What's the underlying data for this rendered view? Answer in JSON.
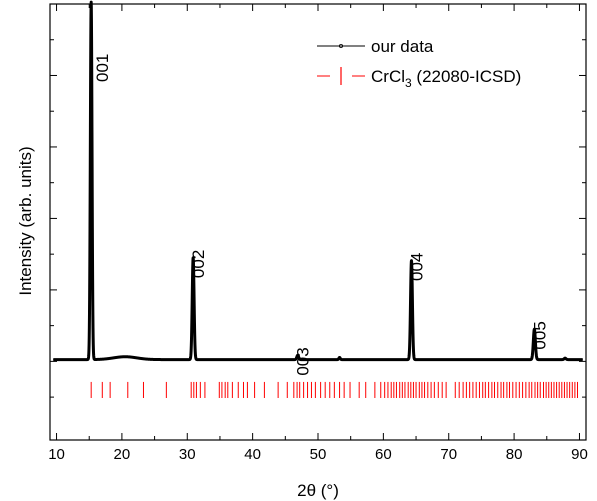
{
  "chart_data": {
    "type": "line",
    "title": "",
    "xlabel": "2θ (°)",
    "ylabel": "Intensity (arb. units)",
    "xlim": [
      9,
      91
    ],
    "ylim": [
      -0.22,
      1.0
    ],
    "x_ticks": [
      10,
      20,
      30,
      40,
      50,
      60,
      70,
      80,
      90
    ],
    "x_tick_labels": [
      "10",
      "20",
      "30",
      "40",
      "50",
      "60",
      "70",
      "80",
      "90"
    ],
    "y_tick_labels_shown": false,
    "grid": false,
    "legend": {
      "placement": "top-right",
      "entries": [
        {
          "series": "our_data",
          "label": "our data"
        },
        {
          "series": "reference",
          "label_main": "CrCl",
          "label_sub": "3",
          "label_rest": " (22080-ICSD)"
        }
      ]
    },
    "colors": {
      "our_data": "#000000",
      "reference": "#ff0000",
      "axis": "#000000"
    },
    "series": [
      {
        "id": "our_data",
        "name": "our data",
        "baseline": 0.005,
        "peaks": [
          {
            "x": 15.3,
            "height": 1.0,
            "width": 0.18,
            "label": "001"
          },
          {
            "x": 30.9,
            "height": 0.285,
            "width": 0.2,
            "label": "002"
          },
          {
            "x": 46.9,
            "height": 0.012,
            "width": 0.2,
            "label": "003"
          },
          {
            "x": 64.3,
            "height": 0.277,
            "width": 0.2,
            "label": "004"
          },
          {
            "x": 83.1,
            "height": 0.085,
            "width": 0.22,
            "label": "005"
          }
        ],
        "humps": [
          {
            "x": 20.5,
            "height": 0.008,
            "width": 2.5
          },
          {
            "x": 53.3,
            "height": 0.006,
            "width": 0.15
          },
          {
            "x": 87.8,
            "height": 0.004,
            "width": 0.2
          }
        ]
      },
      {
        "id": "reference",
        "name": "CrCl3 (22080-ICSD)",
        "type": "ticks",
        "y_level": -0.08,
        "tick_height": 0.045,
        "positions": [
          15.3,
          17.0,
          18.2,
          20.9,
          23.3,
          26.8,
          30.6,
          31.0,
          31.4,
          32.0,
          32.7,
          34.9,
          35.3,
          35.8,
          36.2,
          36.9,
          37.8,
          38.6,
          39.2,
          40.3,
          41.8,
          43.9,
          45.3,
          46.3,
          46.8,
          47.2,
          47.8,
          48.4,
          49.0,
          49.6,
          50.4,
          51.1,
          51.8,
          52.5,
          53.3,
          54.0,
          54.9,
          56.3,
          57.3,
          58.7,
          59.6,
          60.2,
          60.7,
          61.2,
          61.6,
          62.0,
          62.5,
          62.9,
          63.3,
          63.8,
          64.2,
          64.6,
          65.0,
          65.5,
          65.9,
          66.3,
          66.8,
          67.3,
          67.8,
          68.4,
          69.0,
          69.6,
          71.0,
          71.6,
          72.2,
          72.7,
          73.2,
          73.7,
          74.2,
          74.7,
          75.2,
          75.6,
          76.1,
          76.6,
          77.0,
          77.5,
          78.0,
          78.4,
          78.9,
          79.3,
          79.8,
          80.3,
          80.8,
          81.3,
          81.8,
          82.3,
          82.7,
          83.2,
          83.6,
          84.0,
          84.5,
          84.9,
          85.3,
          85.7,
          86.1,
          86.5,
          86.9,
          87.3,
          87.7,
          88.1,
          88.5,
          88.9,
          89.3,
          89.7
        ]
      }
    ]
  }
}
